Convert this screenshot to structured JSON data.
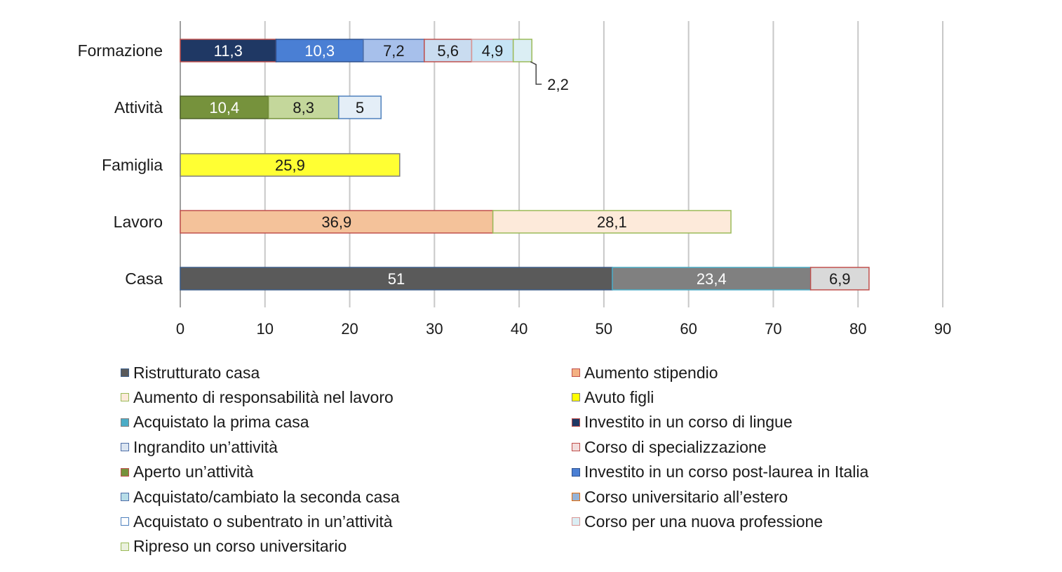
{
  "chart_data": {
    "type": "bar",
    "orientation": "horizontal",
    "stacked": true,
    "title": "",
    "xlabel": "",
    "ylabel": "",
    "xlim": [
      0,
      90
    ],
    "xticks": [
      "0",
      "10",
      "20",
      "30",
      "40",
      "50",
      "60",
      "70",
      "80",
      "90"
    ],
    "grid": "vertical",
    "legend_position": "bottom",
    "categories": [
      "Formazione",
      "Attività",
      "Famiglia",
      "Lavoro",
      "Casa"
    ],
    "bars": [
      {
        "category": "Formazione",
        "segments": [
          {
            "series": "Investito in un corso di lingue",
            "value": 11.3,
            "label": "11,3"
          },
          {
            "series": "Investito in un corso post-laurea in Italia",
            "value": 10.3,
            "label": "10,3"
          },
          {
            "series": "Ingrandito un’attività",
            "value": 7.2,
            "label": "7,2"
          },
          {
            "series": "Corso universitario all’estero",
            "value": 5.6,
            "label": "5,6"
          },
          {
            "series": "Corso per una nuova professione",
            "value": 4.9,
            "label": "4,9"
          },
          {
            "series": "Ripreso un corso universitario",
            "value": 2.2,
            "label": "2,2",
            "callout": true
          }
        ]
      },
      {
        "category": "Attività",
        "segments": [
          {
            "series": "Aperto un’attività",
            "value": 10.4,
            "label": "10,4"
          },
          {
            "series": "Acquistato o subentrato in un’attività",
            "value": 8.3,
            "label": "8,3"
          },
          {
            "series": "Acquistato/cambiato la seconda casa",
            "value": 5,
            "label": "5"
          }
        ]
      },
      {
        "category": "Famiglia",
        "segments": [
          {
            "series": "Avuto figli",
            "value": 25.9,
            "label": "25,9"
          }
        ]
      },
      {
        "category": "Lavoro",
        "segments": [
          {
            "series": "Aumento stipendio",
            "value": 36.9,
            "label": "36,9"
          },
          {
            "series": "Aumento di responsabilità nel lavoro",
            "value": 28.1,
            "label": "28,1"
          }
        ]
      },
      {
        "category": "Casa",
        "segments": [
          {
            "series": "Ristrutturato casa",
            "value": 51,
            "label": "51"
          },
          {
            "series": "Acquistato la prima casa",
            "value": 23.4,
            "label": "23,4"
          },
          {
            "series": "Corso di specializzazione",
            "value": 6.9,
            "label": "6,9"
          }
        ]
      }
    ],
    "series": [
      {
        "name": "Ristrutturato casa",
        "fill": "#5a5a5a",
        "stroke": "#3e5f8a",
        "text": "#ffffff"
      },
      {
        "name": "Aumento stipendio",
        "fill": "#f4c29a",
        "stroke": "#c0504d",
        "text": "#1a1a1a"
      },
      {
        "name": "Aumento di responsabilità nel lavoro",
        "fill": "#fdeada",
        "stroke": "#9bbb59",
        "text": "#1a1a1a"
      },
      {
        "name": "Avuto figli",
        "fill": "#ffff33",
        "stroke": "#7f7f7f",
        "text": "#1a1a1a"
      },
      {
        "name": "Acquistato la prima casa",
        "fill": "#808080",
        "stroke": "#4bacc6",
        "text": "#ffffff"
      },
      {
        "name": "Investito in un corso di lingue",
        "fill": "#1f3864",
        "stroke": "#c0504d",
        "text": "#ffffff"
      },
      {
        "name": "Ingrandito un’attività",
        "fill": "#a7c0eb",
        "stroke": "#4f6fa8",
        "text": "#1a1a1a"
      },
      {
        "name": "Corso di specializzazione",
        "fill": "#d9d9d9",
        "stroke": "#c0504d",
        "text": "#1a1a1a"
      },
      {
        "name": "Aperto un’attività",
        "fill": "#76923c",
        "stroke": "#4f6228",
        "text": "#ffffff"
      },
      {
        "name": "Investito in un corso post-laurea in Italia",
        "fill": "#4a7fd4",
        "stroke": "#2f528f",
        "text": "#ffffff"
      },
      {
        "name": "Acquistato/cambiato la seconda casa",
        "fill": "#e4eef7",
        "stroke": "#4f81bd",
        "text": "#1a1a1a"
      },
      {
        "name": "Corso universitario all’estero",
        "fill": "#c9dcf0",
        "stroke": "#c0504d",
        "text": "#1a1a1a"
      },
      {
        "name": "Acquistato o subentrato in un’attività",
        "fill": "#c4d79b",
        "stroke": "#76923c",
        "text": "#1a1a1a"
      },
      {
        "name": "Corso per una nuova professione",
        "fill": "#c6e4f5",
        "stroke": "#d99694",
        "text": "#1a1a1a"
      },
      {
        "name": "Ripreso un corso universitario",
        "fill": "#dbeef4",
        "stroke": "#9bbb59",
        "text": "#1a1a1a"
      }
    ],
    "legend": [
      {
        "label": "Ristrutturato casa",
        "swatch": "#5a5a5a",
        "border": "#3e5f8a"
      },
      {
        "label": "Aumento stipendio",
        "swatch": "#f4b183",
        "border": "#c0504d"
      },
      {
        "label": "Aumento di responsabilità nel lavoro",
        "swatch": "#fdeada",
        "border": "#9bbb59"
      },
      {
        "label": "Avuto figli",
        "swatch": "#ffff00",
        "border": "#7f7f7f"
      },
      {
        "label": "Acquistato la prima casa",
        "swatch": "#4bacc6",
        "border": "#808080"
      },
      {
        "label": "Investito in un corso di lingue",
        "swatch": "#1f3864",
        "border": "#c0504d"
      },
      {
        "label": "Ingrandito un’attività",
        "swatch": "#dbe5f1",
        "border": "#4f6fa8"
      },
      {
        "label": "Corso di specializzazione",
        "swatch": "#f2dcdb",
        "border": "#c0504d"
      },
      {
        "label": "Aperto un’attività",
        "swatch": "#76923c",
        "border": "#c0504d"
      },
      {
        "label": "Investito in un corso post-laurea in Italia",
        "swatch": "#4a7fd4",
        "border": "#2f528f"
      },
      {
        "label": "Acquistato/cambiato la seconda casa",
        "swatch": "#b7dde8",
        "border": "#4f6fa8"
      },
      {
        "label": "Corso universitario all’estero",
        "swatch": "#95b3d7",
        "border": "#e36c09"
      },
      {
        "label": "Acquistato o subentrato in un’attività",
        "swatch": "#ffffff",
        "border": "#4f81bd"
      },
      {
        "label": "Corso per una nuova professione",
        "swatch": "#dbeef4",
        "border": "#d99694"
      },
      {
        "label": "Ripreso un corso universitario",
        "swatch": "#ebf1de",
        "border": "#9bbb59"
      }
    ]
  }
}
